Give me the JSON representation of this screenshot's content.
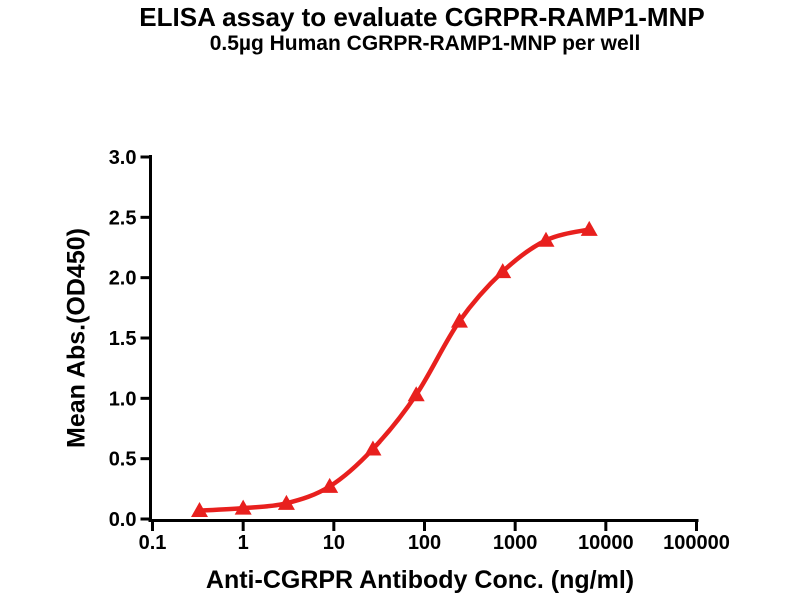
{
  "chart_data": {
    "type": "line",
    "title": "ELISA assay to evaluate CGRPR-RAMP1-MNP",
    "subtitle": "0.5µg Human CGRPR-RAMP1-MNP per well",
    "xlabel": "Anti-CGRPR Antibody Conc. (ng/ml)",
    "ylabel": "Mean Abs.(OD450)",
    "x_scale": "log10",
    "xlim": [
      0.1,
      100000
    ],
    "ylim": [
      0.0,
      3.0
    ],
    "x_ticks": [
      0.1,
      1,
      10,
      100,
      1000,
      10000,
      100000
    ],
    "x_tick_labels": [
      "0.1",
      "1",
      "10",
      "100",
      "1000",
      "10000",
      "100000"
    ],
    "y_ticks": [
      0.0,
      0.5,
      1.0,
      1.5,
      2.0,
      2.5,
      3.0
    ],
    "y_tick_labels": [
      "0.0",
      "0.5",
      "1.0",
      "1.5",
      "2.0",
      "2.5",
      "3.0"
    ],
    "grid": false,
    "legend": "none",
    "series": [
      {
        "name": "Human CGRPR-RAMP1-MNP",
        "marker": "triangle-up",
        "color": "#E8201E",
        "x": [
          0.33,
          1,
          3,
          9,
          27,
          81,
          243,
          729,
          2187,
          6561
        ],
        "y": [
          0.07,
          0.09,
          0.13,
          0.27,
          0.58,
          1.03,
          1.64,
          2.05,
          2.31,
          2.4
        ]
      }
    ],
    "axis_color": "#000000",
    "background_color": "#FFFFFF"
  }
}
